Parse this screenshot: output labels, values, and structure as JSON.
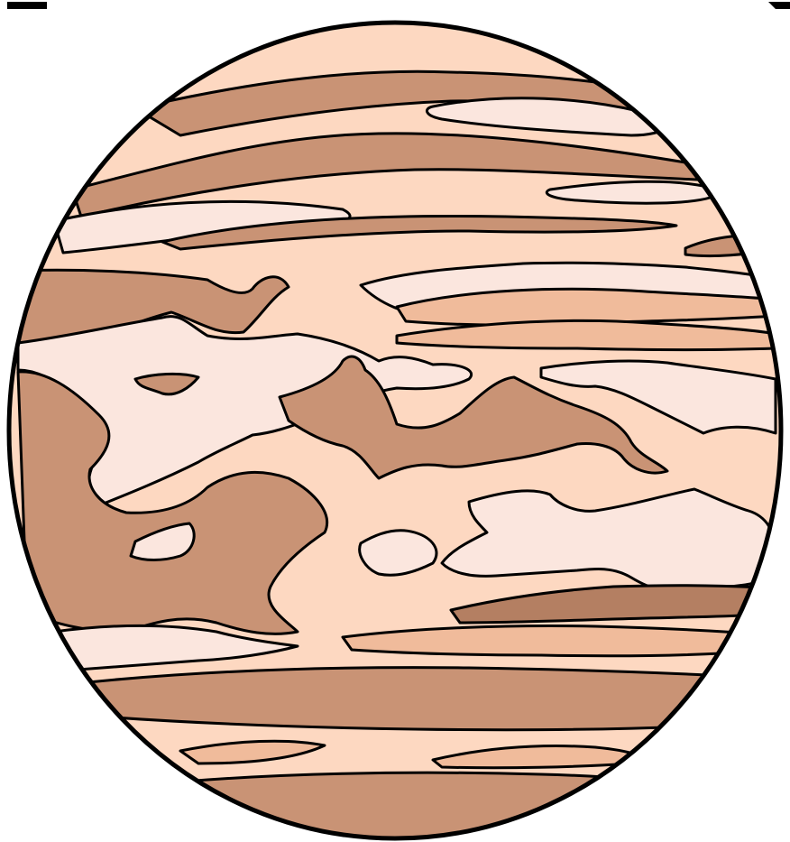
{
  "illustration": {
    "subject": "banded-planet",
    "colors": {
      "background": "#ffffff",
      "outline": "#000000",
      "base_peach": "#fdd8c1",
      "light_pink": "#fbe6de",
      "tan_band": "#c99375",
      "dark_band": "#b47f62",
      "orange_tan": "#f0bb9b"
    }
  }
}
